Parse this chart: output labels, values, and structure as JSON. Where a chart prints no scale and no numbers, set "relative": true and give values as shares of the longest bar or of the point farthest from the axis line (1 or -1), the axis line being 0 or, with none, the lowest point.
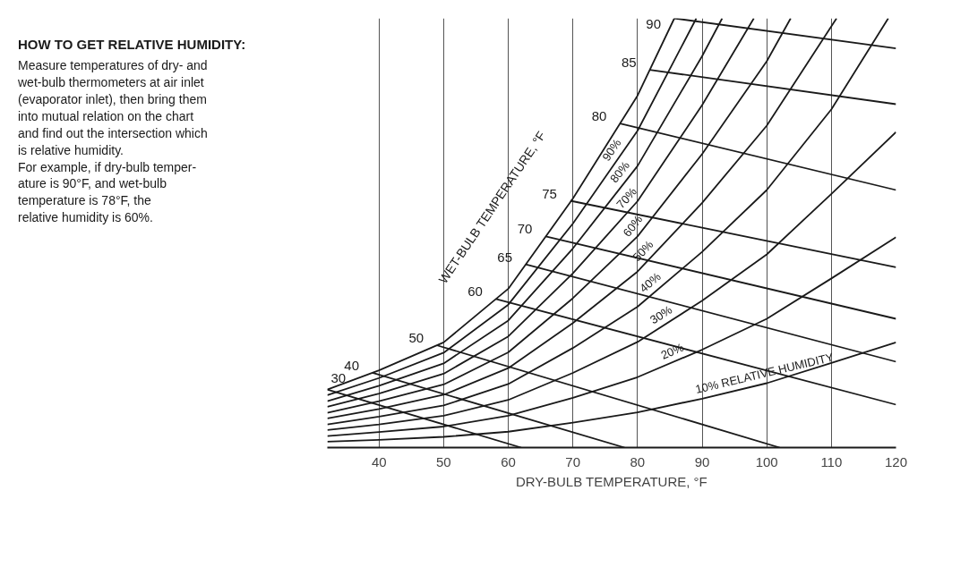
{
  "chart_data": {
    "type": "line",
    "title": "HOW TO GET RELATIVE HUMIDITY:",
    "annotations": [
      "Measure temperatures of dry- and\nwet-bulb thermometers at air inlet\n(evaporator inlet), then bring them\ninto mutual relation on the chart\nand find out the intersection which\nis relative humidity.",
      "For example, if dry-bulb temper-\nature is 90°F, and wet-bulb\ntemperature is 78°F, the\nrelative humidity is 60%.",
      "WET-BULB TEMPERATURE, °F"
    ],
    "xlabel": "DRY-BULB TEMPERATURE, °F",
    "xlim": [
      32,
      120
    ],
    "xticks": [
      40,
      50,
      60,
      70,
      80,
      90,
      100,
      110,
      120
    ],
    "grid": "x",
    "relative": true,
    "series": [
      {
        "name": "10% RELATIVE HUMIDITY",
        "color": "#1a1a1a",
        "x": [
          32,
          40,
          50,
          60,
          70,
          80,
          90,
          100,
          110,
          120
        ],
        "values": [
          0.014,
          0.018,
          0.025,
          0.037,
          0.058,
          0.082,
          0.114,
          0.15,
          0.197,
          0.245
        ]
      },
      {
        "name": "20%",
        "color": "#1a1a1a",
        "x": [
          32,
          40,
          50,
          60,
          70,
          80,
          90,
          100,
          110,
          120
        ],
        "values": [
          0.027,
          0.036,
          0.049,
          0.074,
          0.116,
          0.164,
          0.228,
          0.3,
          0.394,
          0.49
        ]
      },
      {
        "name": "30%",
        "color": "#1a1a1a",
        "x": [
          32,
          40,
          50,
          60,
          70,
          80,
          90,
          100,
          110,
          120
        ],
        "values": [
          0.041,
          0.054,
          0.074,
          0.111,
          0.174,
          0.246,
          0.342,
          0.45,
          0.591,
          0.735
        ]
      },
      {
        "name": "40%",
        "color": "#1a1a1a",
        "x": [
          32,
          40,
          50,
          60,
          70,
          80,
          90,
          100,
          110,
          118.8
        ],
        "values": [
          0.054,
          0.072,
          0.098,
          0.148,
          0.232,
          0.328,
          0.456,
          0.6,
          0.788,
          1.0
        ]
      },
      {
        "name": "50%",
        "color": "#1a1a1a",
        "x": [
          32,
          40,
          50,
          60,
          70,
          80,
          90,
          100,
          110.8
        ],
        "values": [
          0.068,
          0.09,
          0.123,
          0.185,
          0.29,
          0.41,
          0.57,
          0.75,
          1.0
        ]
      },
      {
        "name": "60%",
        "color": "#1a1a1a",
        "x": [
          32,
          40,
          50,
          60,
          70,
          80,
          90,
          100,
          103.7
        ],
        "values": [
          0.081,
          0.108,
          0.147,
          0.222,
          0.348,
          0.492,
          0.684,
          0.9,
          1.0
        ]
      },
      {
        "name": "70%",
        "color": "#1a1a1a",
        "x": [
          32,
          40,
          50,
          60,
          70,
          80,
          90,
          98
        ],
        "values": [
          0.095,
          0.126,
          0.172,
          0.259,
          0.406,
          0.574,
          0.798,
          1.0
        ]
      },
      {
        "name": "80%",
        "color": "#1a1a1a",
        "x": [
          32,
          40,
          50,
          60,
          70,
          80,
          90,
          93.1
        ],
        "values": [
          0.108,
          0.144,
          0.196,
          0.296,
          0.464,
          0.656,
          0.912,
          1.0
        ]
      },
      {
        "name": "90%",
        "color": "#1a1a1a",
        "x": [
          32,
          40,
          50,
          60,
          70,
          80,
          89.1
        ],
        "values": [
          0.122,
          0.162,
          0.221,
          0.333,
          0.522,
          0.738,
          1.0
        ]
      },
      {
        "color": "#1a1a1a",
        "x": [
          32,
          40,
          50,
          60,
          70,
          80,
          85.7
        ],
        "values": [
          0.135,
          0.18,
          0.245,
          0.37,
          0.58,
          0.82,
          1.0
        ]
      },
      {
        "name": "30",
        "color": "#1a1a1a",
        "x": [
          32,
          62
        ],
        "values": [
          0.135,
          0
        ]
      },
      {
        "name": "40",
        "color": "#1a1a1a",
        "x": [
          39,
          78
        ],
        "values": [
          0.174,
          0
        ]
      },
      {
        "name": "50",
        "color": "#1a1a1a",
        "x": [
          49,
          102
        ],
        "values": [
          0.238,
          0
        ]
      },
      {
        "name": "60",
        "color": "#1a1a1a",
        "x": [
          58.1,
          120
        ],
        "values": [
          0.346,
          0.1
        ]
      },
      {
        "name": "65",
        "color": "#1a1a1a",
        "x": [
          62.7,
          120
        ],
        "values": [
          0.427,
          0.2
        ]
      },
      {
        "name": "70",
        "color": "#1a1a1a",
        "x": [
          65.8,
          120
        ],
        "values": [
          0.492,
          0.3
        ]
      },
      {
        "name": "75",
        "color": "#1a1a1a",
        "x": [
          69.6,
          120
        ],
        "values": [
          0.575,
          0.42
        ]
      },
      {
        "name": "80",
        "color": "#1a1a1a",
        "x": [
          77.3,
          120
        ],
        "values": [
          0.755,
          0.6
        ]
      },
      {
        "name": "85",
        "color": "#1a1a1a",
        "x": [
          81.9,
          120
        ],
        "values": [
          0.88,
          0.8
        ]
      },
      {
        "name": "90",
        "color": "#1a1a1a",
        "x": [
          85.7,
          120
        ],
        "values": [
          1.0,
          0.93
        ]
      }
    ]
  }
}
